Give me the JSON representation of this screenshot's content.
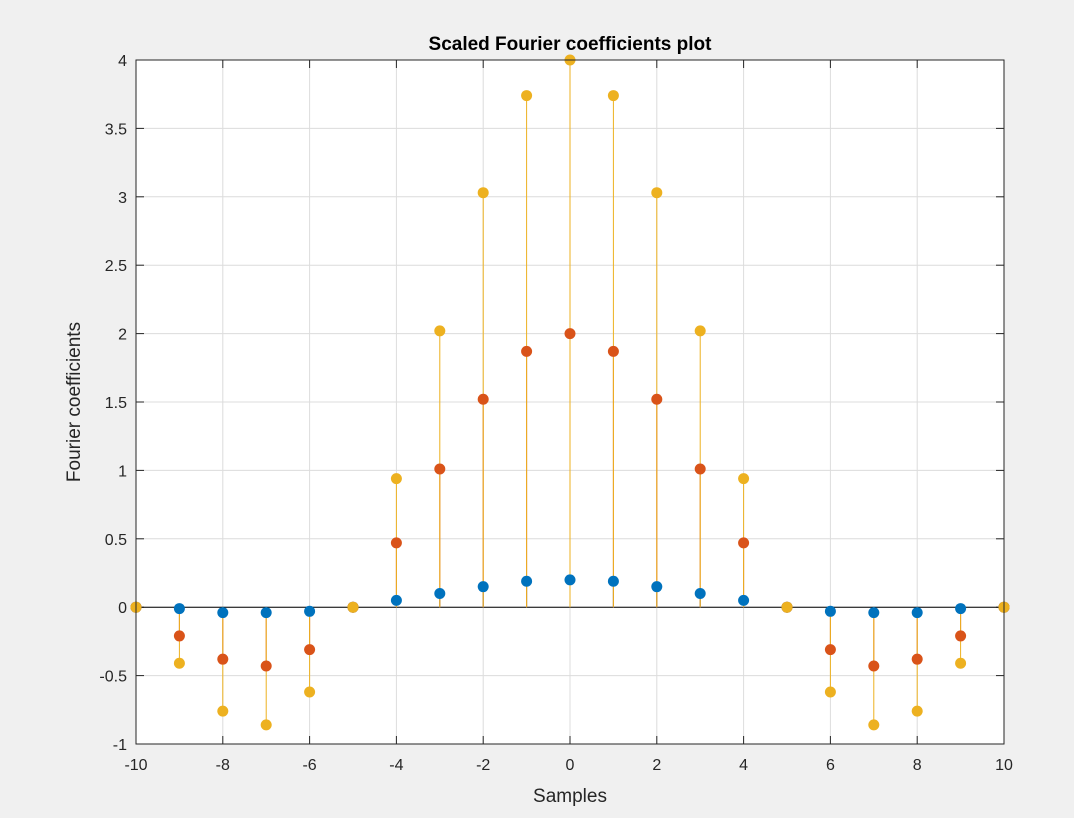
{
  "chart_data": {
    "type": "stem",
    "title": "Scaled Fourier coefficients plot",
    "xlabel": "Samples",
    "ylabel": "Fourier coefficients",
    "xlim": [
      -10,
      10
    ],
    "ylim": [
      -1,
      4
    ],
    "xticks": [
      -10,
      -8,
      -6,
      -4,
      -2,
      0,
      2,
      4,
      6,
      8,
      10
    ],
    "yticks": [
      -1,
      -0.5,
      0,
      0.5,
      1,
      1.5,
      2,
      2.5,
      3,
      3.5,
      4
    ],
    "grid": true,
    "baseline": 0,
    "x": [
      -10,
      -9,
      -8,
      -7,
      -6,
      -5,
      -4,
      -3,
      -2,
      -1,
      0,
      1,
      2,
      3,
      4,
      5,
      6,
      7,
      8,
      9,
      10
    ],
    "series": [
      {
        "color": "#0072bd",
        "values": [
          0,
          -0.01,
          -0.04,
          -0.04,
          -0.03,
          0,
          0.05,
          0.1,
          0.15,
          0.19,
          0.2,
          0.19,
          0.15,
          0.1,
          0.05,
          0,
          -0.03,
          -0.04,
          -0.04,
          -0.01,
          0
        ]
      },
      {
        "color": "#d95319",
        "values": [
          0,
          -0.21,
          -0.38,
          -0.43,
          -0.31,
          0,
          0.47,
          1.01,
          1.52,
          1.87,
          2.0,
          1.87,
          1.52,
          1.01,
          0.47,
          0,
          -0.31,
          -0.43,
          -0.38,
          -0.21,
          0
        ]
      },
      {
        "color": "#edb120",
        "values": [
          0,
          -0.41,
          -0.76,
          -0.86,
          -0.62,
          0,
          0.94,
          2.02,
          3.03,
          3.74,
          4.0,
          3.74,
          3.03,
          2.02,
          0.94,
          0,
          -0.62,
          -0.86,
          -0.76,
          -0.41,
          0
        ]
      }
    ]
  }
}
